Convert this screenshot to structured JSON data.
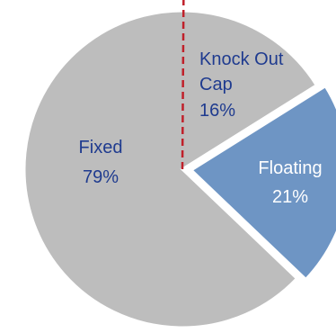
{
  "chart_data": {
    "type": "pie",
    "slices": [
      {
        "label": "Fixed",
        "value": 79,
        "value_label": "79%",
        "color": "#bdbdbd",
        "text_color": "#1f3b8f"
      },
      {
        "label": "Floating",
        "value": 21,
        "value_label": "21%",
        "color": "#6e95c4",
        "text_color": "#ffffff",
        "exploded": true
      }
    ],
    "sub_segment": {
      "label_lines": [
        "Knock Out",
        "Cap"
      ],
      "value": 16,
      "value_label": "16%",
      "within": "Fixed",
      "boundary_style": "dashed",
      "boundary_color": "#c0202a",
      "text_color": "#1f3b8f"
    },
    "legend": "none"
  }
}
